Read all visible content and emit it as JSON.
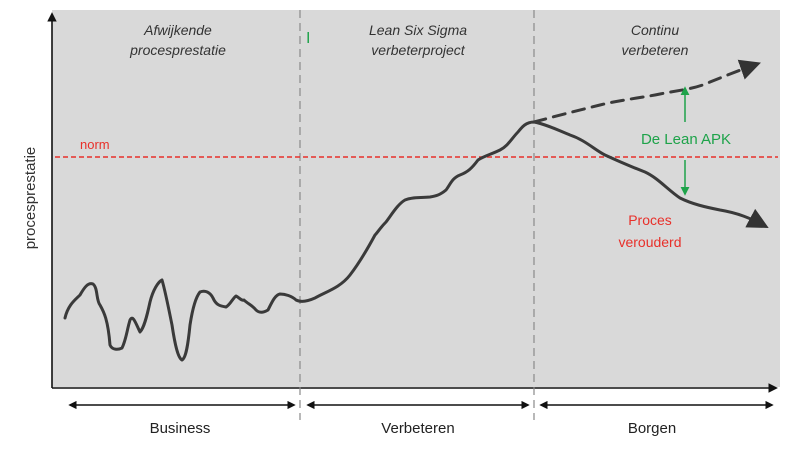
{
  "y_axis_label": "procesprestatie",
  "phases": {
    "left": [
      "Afwijkende",
      "procesprestatie"
    ],
    "middle": [
      "Lean Six Sigma",
      "verbeterproject"
    ],
    "right": [
      "Continu",
      "verbeteren"
    ]
  },
  "stray_mark": "I",
  "norm_label": "norm",
  "lean_apk_label": "De Lean APK",
  "aged_label": [
    "Proces",
    "verouderd"
  ],
  "bottom_labels": {
    "business": "Business",
    "verbeteren": "Verbeteren",
    "borgen": "Borgen"
  },
  "colors": {
    "panel_bg": "#d9d9d9",
    "curve": "#3a3a3a",
    "norm_line": "#e8302a",
    "norm_text": "#e8302a",
    "apk": "#1ea34a",
    "aged_text": "#e8302a",
    "phase_divider": "#8a8a8a"
  }
}
